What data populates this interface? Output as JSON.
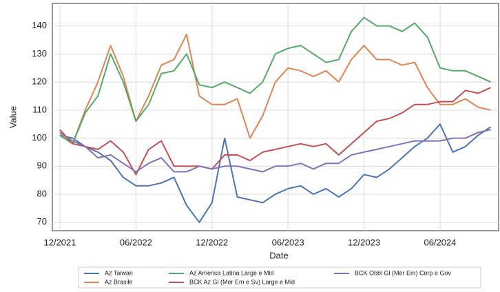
{
  "chart_data": {
    "type": "line",
    "x_label": "Date",
    "y_label": "Value",
    "x": [
      "12/2021",
      "01/2022",
      "02/2022",
      "03/2022",
      "04/2022",
      "05/2022",
      "06/2022",
      "07/2022",
      "08/2022",
      "09/2022",
      "10/2022",
      "11/2022",
      "12/2022",
      "01/2023",
      "02/2023",
      "03/2023",
      "04/2023",
      "05/2023",
      "06/2023",
      "07/2023",
      "08/2023",
      "09/2023",
      "10/2023",
      "11/2023",
      "12/2023",
      "01/2024",
      "02/2024",
      "03/2024",
      "04/2024",
      "05/2024",
      "06/2024",
      "07/2024",
      "08/2024",
      "09/2024",
      "10/2024"
    ],
    "xticks": [
      "12/2021",
      "06/2022",
      "12/2022",
      "06/2023",
      "12/2023",
      "06/2024"
    ],
    "ylim": [
      67,
      148
    ],
    "yticks": [
      70,
      80,
      90,
      100,
      110,
      120,
      130,
      140
    ],
    "grid": true,
    "legend": "bottom",
    "series": [
      {
        "name": "Az Taiwan",
        "color": "#4c72b0",
        "values": [
          101,
          100,
          97,
          95,
          92,
          86,
          83,
          83,
          84,
          86,
          76,
          70,
          77,
          100,
          79,
          78,
          77,
          80,
          82,
          83,
          80,
          82,
          79,
          82,
          87,
          86,
          89,
          93,
          97,
          100,
          105,
          95,
          97,
          101,
          104
        ]
      },
      {
        "name": "Az Brasile",
        "color": "#dd8452",
        "values": [
          102,
          98,
          110,
          120,
          133,
          122,
          106,
          115,
          126,
          128,
          137,
          115,
          112,
          112,
          114,
          100,
          108,
          120,
          125,
          124,
          122,
          124,
          120,
          128,
          133,
          128,
          128,
          126,
          127,
          118,
          112,
          112,
          114,
          111,
          110
        ]
      },
      {
        "name": "Az America Latina Large e Mid",
        "color": "#55a868",
        "values": [
          101,
          98,
          109,
          115,
          130,
          120,
          106,
          112,
          123,
          124,
          130,
          119,
          118,
          120,
          118,
          116,
          120,
          130,
          132,
          133,
          130,
          127,
          128,
          138,
          143,
          140,
          140,
          138,
          141,
          136,
          125,
          124,
          124,
          122,
          120
        ]
      },
      {
        "name": "BCK Az Gl (Mer Em e Sv) Large e Mid",
        "color": "#c44e52",
        "values": [
          103,
          98,
          97,
          96,
          99,
          95,
          87,
          96,
          99,
          90,
          90,
          90,
          89,
          94,
          94,
          92,
          95,
          96,
          97,
          98,
          97,
          98,
          94,
          98,
          102,
          106,
          107,
          109,
          112,
          112,
          113,
          113,
          117,
          116,
          118
        ]
      },
      {
        "name": "BCK Obbl Gl (Mer Em) Corp e Gov",
        "color": "#8172b3",
        "values": [
          102,
          99,
          97,
          93,
          94,
          91,
          88,
          91,
          93,
          88,
          88,
          90,
          89,
          90,
          90,
          89,
          88,
          90,
          90,
          91,
          89,
          91,
          91,
          94,
          95,
          96,
          97,
          98,
          99,
          99,
          99,
          100,
          100,
          102,
          103
        ]
      }
    ]
  }
}
